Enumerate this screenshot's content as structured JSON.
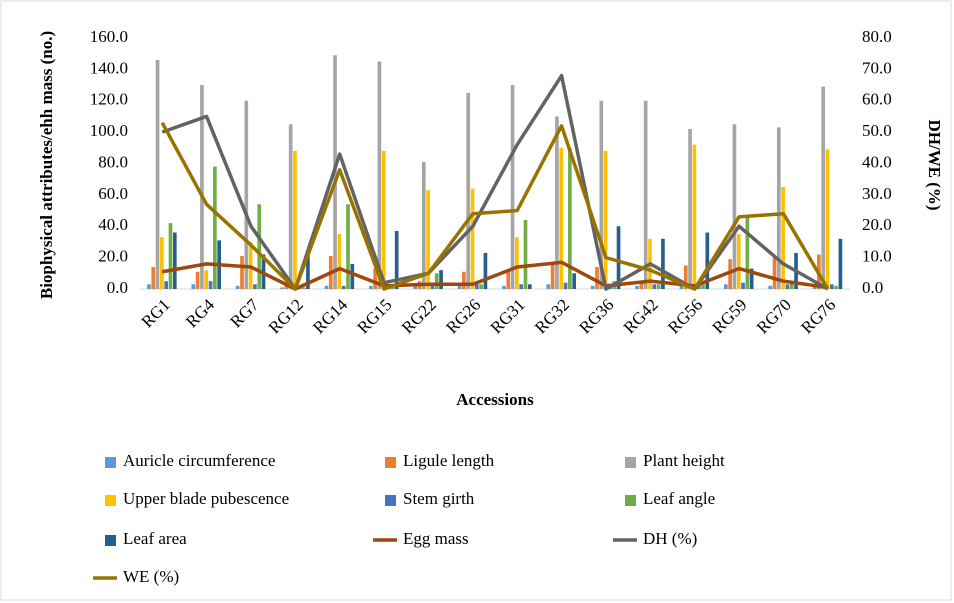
{
  "chart_data": {
    "type": "bar-line",
    "y_label": "Biophysical attributes/ehh mass (no.)",
    "y2_label": "DH/WE (%)",
    "x_label": "Accessions",
    "categories": [
      "RG1",
      "RG4",
      "RG7",
      "RG12",
      "RG14",
      "RG15",
      "RG22",
      "RG26",
      "RG31",
      "RG32",
      "RG36",
      "RG42",
      "RG56",
      "RG59",
      "RG70",
      "RG76"
    ],
    "ylim": [
      0,
      160
    ],
    "yticks": [
      {
        "value": 0,
        "label": "0.0"
      },
      {
        "value": 20,
        "label": "20.0"
      },
      {
        "value": 40,
        "label": "40.0"
      },
      {
        "value": 60,
        "label": "60.0"
      },
      {
        "value": 80,
        "label": "80.0"
      },
      {
        "value": 100,
        "label": "100.0"
      },
      {
        "value": 120,
        "label": "120.0"
      },
      {
        "value": 140,
        "label": "140.0"
      },
      {
        "value": 160,
        "label": "160.0"
      }
    ],
    "y2lim": [
      0,
      80
    ],
    "y2ticks": [
      {
        "value": 0,
        "label": "0.0"
      },
      {
        "value": 10,
        "label": "10.0"
      },
      {
        "value": 20,
        "label": "20.0"
      },
      {
        "value": 30,
        "label": "30.0"
      },
      {
        "value": 40,
        "label": "40.0"
      },
      {
        "value": 50,
        "label": "50.0"
      },
      {
        "value": 60,
        "label": "60.0"
      },
      {
        "value": 70,
        "label": "70.0"
      },
      {
        "value": 80,
        "label": "80.0"
      }
    ],
    "series": [
      {
        "name": "Auricle circumference",
        "type": "bar",
        "color": "#5b9bd5",
        "values": [
          3,
          3,
          2,
          1,
          2,
          2,
          2,
          2,
          2,
          3,
          2,
          2,
          2,
          3,
          2,
          2
        ]
      },
      {
        "name": "Ligule length",
        "type": "bar",
        "color": "#ed7d31",
        "values": [
          14,
          11,
          21,
          2,
          21,
          13,
          5,
          11,
          11,
          16,
          14,
          5,
          15,
          19,
          20,
          22
        ]
      },
      {
        "name": "Plant height",
        "type": "bar",
        "color": "#a5a5a5",
        "values": [
          146,
          130,
          120,
          105,
          149,
          145,
          81,
          125,
          130,
          110,
          120,
          120,
          102,
          105,
          103,
          129
        ]
      },
      {
        "name": "Upper blade pubescence",
        "type": "bar",
        "color": "#ffc000",
        "values": [
          33,
          12,
          30,
          88,
          35,
          88,
          63,
          64,
          33,
          90,
          88,
          32,
          92,
          35,
          65,
          89
        ]
      },
      {
        "name": "Stem girth",
        "type": "bar",
        "color": "#4472c4",
        "values": [
          5,
          5,
          3,
          2,
          2,
          3,
          3,
          3,
          3,
          4,
          3,
          3,
          3,
          4,
          3,
          3
        ]
      },
      {
        "name": "Leaf angle",
        "type": "bar",
        "color": "#70ad47",
        "values": [
          42,
          78,
          54,
          1,
          54,
          2,
          10,
          3,
          44,
          90,
          5,
          3,
          3,
          46,
          5,
          2
        ]
      },
      {
        "name": "Leaf area",
        "type": "bar",
        "color": "#255e91",
        "values": [
          36,
          31,
          22,
          25,
          16,
          37,
          12,
          23,
          3,
          10,
          40,
          32,
          36,
          13,
          23,
          32
        ]
      },
      {
        "name": "Egg mass",
        "type": "line",
        "color": "#9e480e",
        "values": [
          11,
          16,
          14,
          0,
          13,
          2,
          3,
          3,
          14,
          17,
          2,
          5,
          2,
          13,
          5,
          1
        ]
      },
      {
        "name": "DH (%)",
        "type": "line",
        "axis": "y2",
        "color": "#636363",
        "values": [
          50,
          55,
          20,
          0,
          43,
          2,
          5,
          20,
          46,
          68,
          0,
          8,
          0,
          20,
          8,
          0
        ]
      },
      {
        "name": "WE (%)",
        "type": "line",
        "axis": "y2",
        "color": "#997300",
        "values": [
          53,
          27,
          14,
          0,
          38,
          0,
          5,
          24,
          25,
          52,
          10,
          6,
          0,
          23,
          24,
          0
        ]
      }
    ]
  }
}
